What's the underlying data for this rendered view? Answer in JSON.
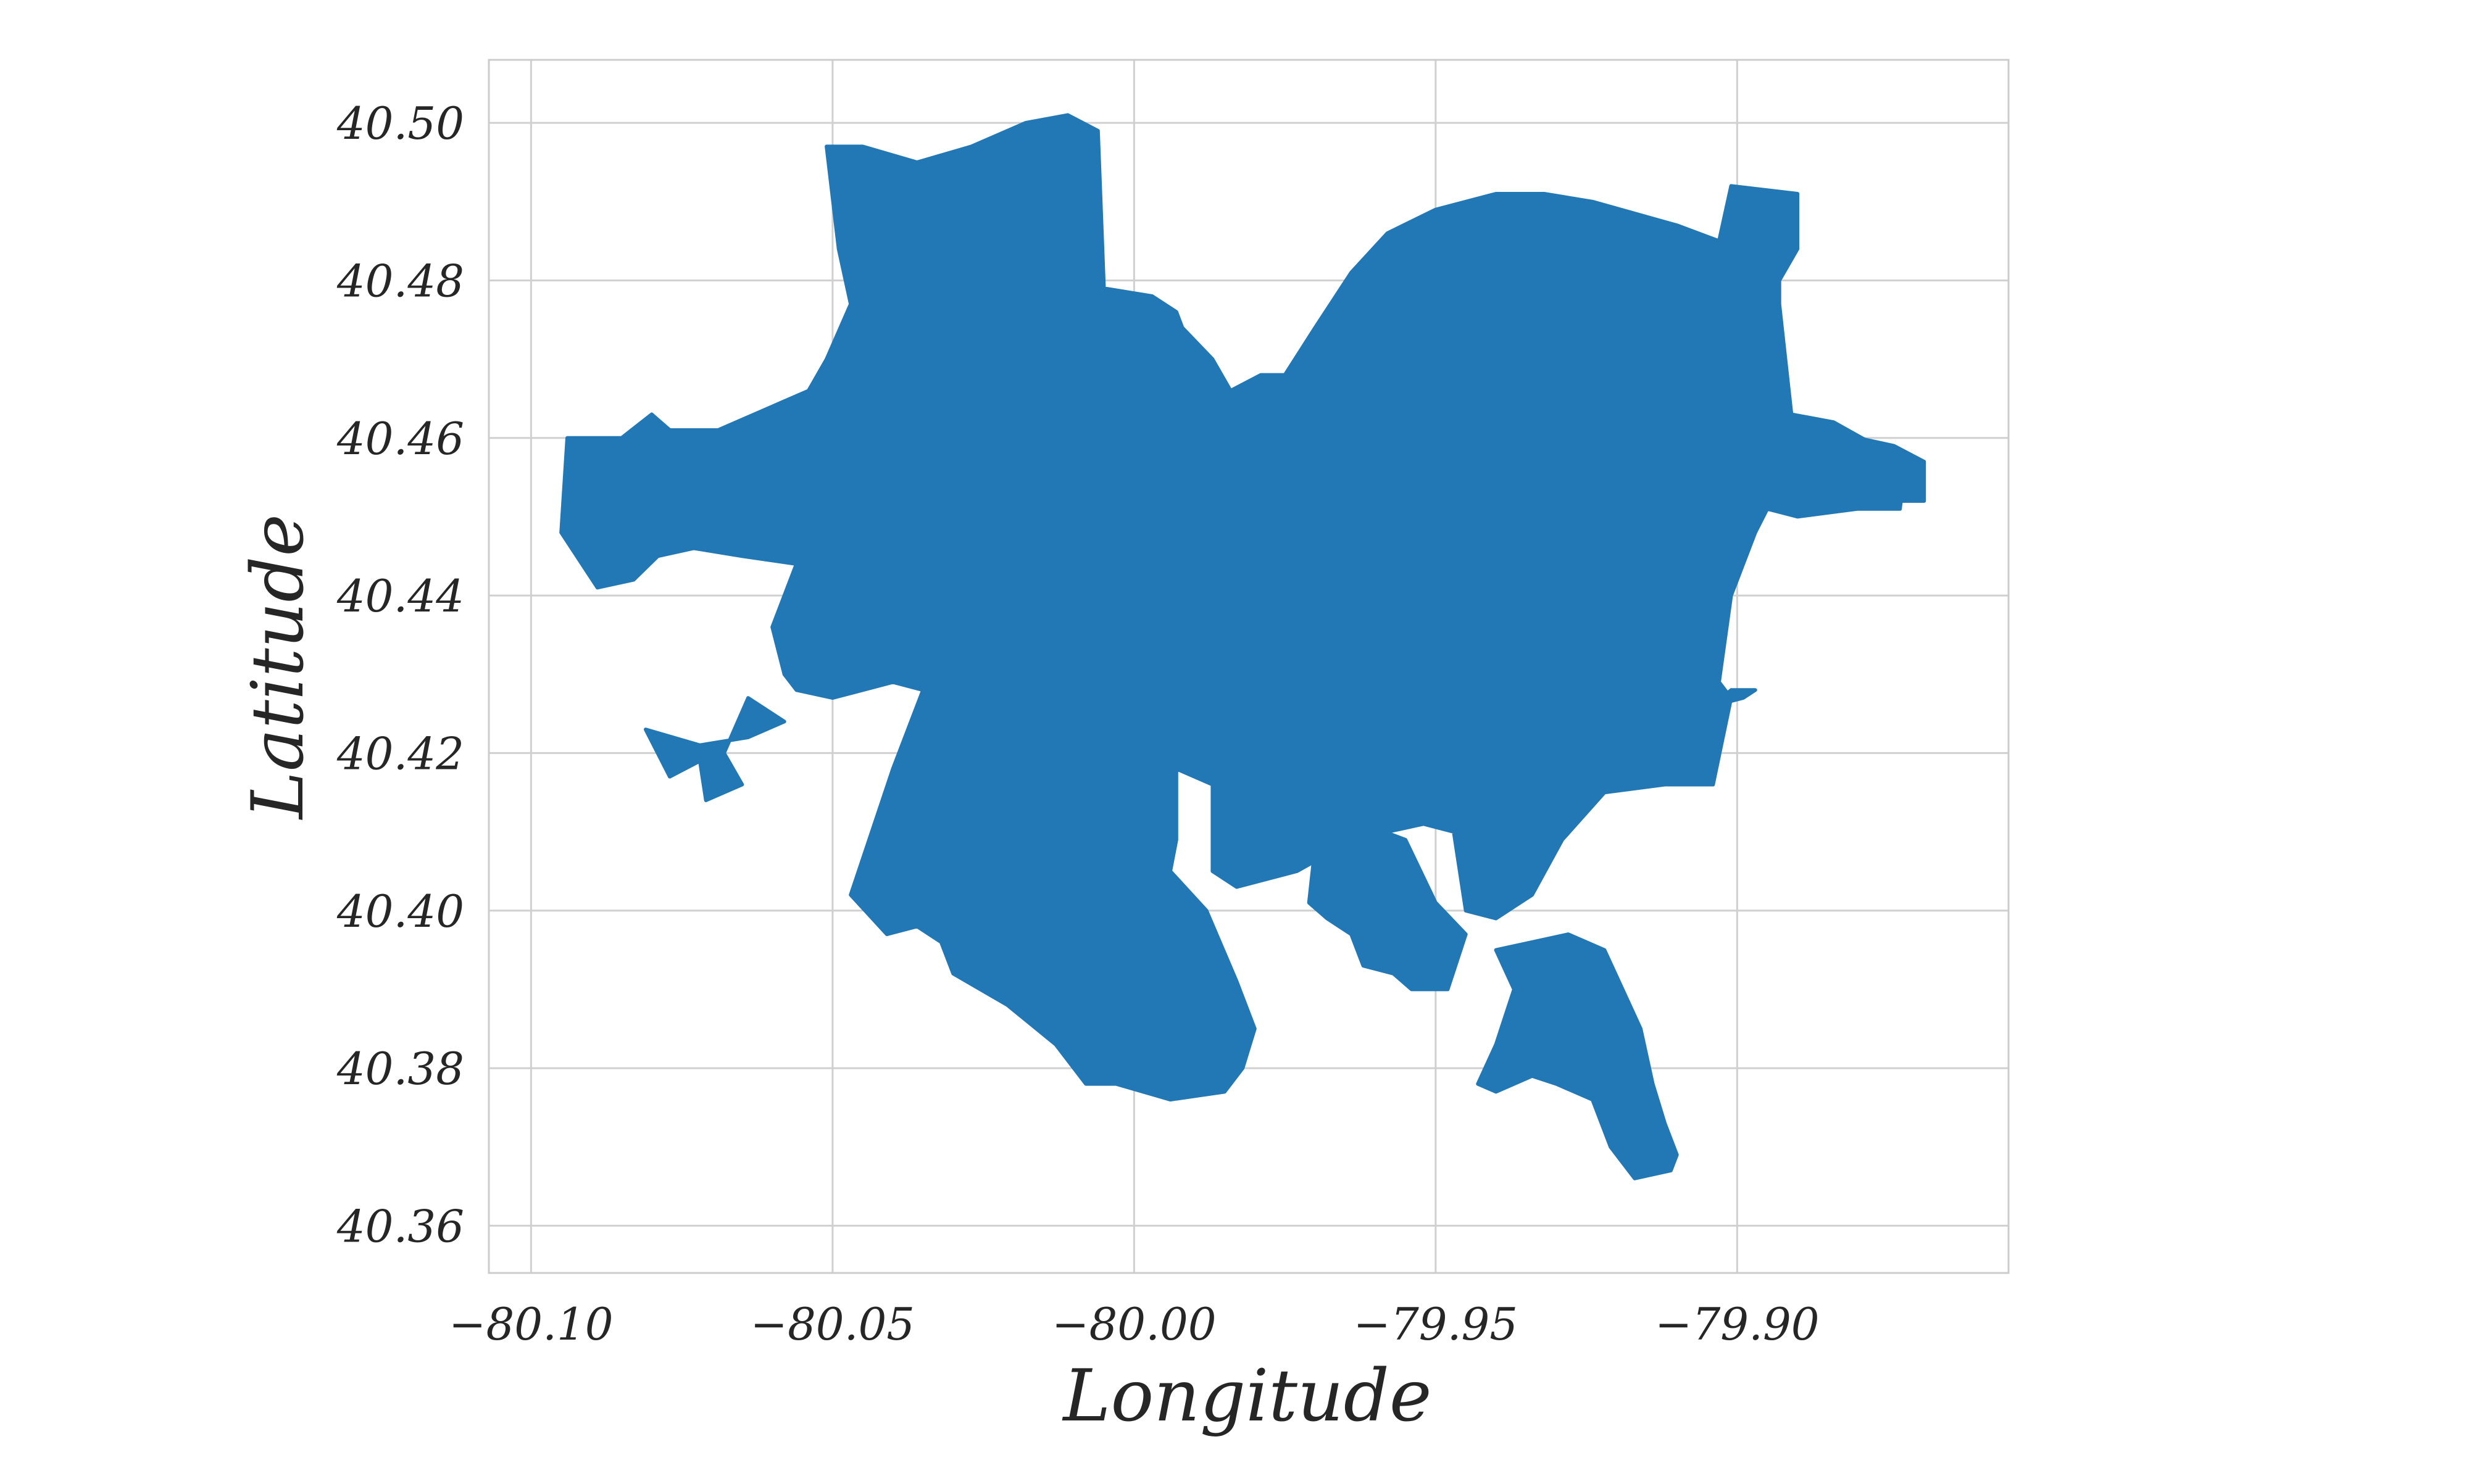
{
  "chart_data": {
    "type": "map",
    "xlabel": "Longitude",
    "ylabel": "Latitude",
    "xlim": [
      -80.107,
      -79.855
    ],
    "ylim": [
      40.354,
      40.508
    ],
    "xticks": [
      -80.1,
      -80.05,
      -80.0,
      -79.95,
      -79.9
    ],
    "xtick_labels": [
      "−80.10",
      "−80.05",
      "−80.00",
      "−79.95",
      "−79.90"
    ],
    "yticks": [
      40.36,
      40.38,
      40.4,
      40.42,
      40.44,
      40.46,
      40.48,
      40.5
    ],
    "ytick_labels": [
      "40.36",
      "40.38",
      "40.40",
      "40.42",
      "40.44",
      "40.46",
      "40.48",
      "40.50"
    ],
    "grid": true,
    "fill_color": "#2178b4",
    "grid_color": "#d0d0d0",
    "frame_color": "#cccccc",
    "region": [
      [
        -80.051,
        40.497
      ],
      [
        -80.045,
        40.497
      ],
      [
        -80.036,
        40.495
      ],
      [
        -80.027,
        40.497
      ],
      [
        -80.018,
        40.5
      ],
      [
        -80.011,
        40.501
      ],
      [
        -80.006,
        40.499
      ],
      [
        -80.005,
        40.479
      ],
      [
        -79.997,
        40.478
      ],
      [
        -79.993,
        40.476
      ],
      [
        -79.992,
        40.474
      ],
      [
        -79.987,
        40.47
      ],
      [
        -79.984,
        40.466
      ],
      [
        -79.979,
        40.468
      ],
      [
        -79.975,
        40.468
      ],
      [
        -79.97,
        40.474
      ],
      [
        -79.964,
        40.481
      ],
      [
        -79.958,
        40.486
      ],
      [
        -79.95,
        40.489
      ],
      [
        -79.94,
        40.491
      ],
      [
        -79.932,
        40.491
      ],
      [
        -79.924,
        40.49
      ],
      [
        -79.91,
        40.487
      ],
      [
        -79.903,
        40.485
      ],
      [
        -79.901,
        40.492
      ],
      [
        -79.89,
        40.491
      ],
      [
        -79.89,
        40.484
      ],
      [
        -79.893,
        40.48
      ],
      [
        -79.893,
        40.477
      ],
      [
        -79.891,
        40.463
      ],
      [
        -79.884,
        40.462
      ],
      [
        -79.877,
        40.459
      ],
      [
        -79.872,
        40.457
      ],
      [
        -79.873,
        40.451
      ],
      [
        -79.88,
        40.451
      ],
      [
        -79.89,
        40.45
      ],
      [
        -79.895,
        40.451
      ],
      [
        -79.897,
        40.448
      ],
      [
        -79.901,
        40.44
      ],
      [
        -79.903,
        40.429
      ],
      [
        -79.901,
        40.427
      ],
      [
        -79.904,
        40.416
      ],
      [
        -79.912,
        40.416
      ],
      [
        -79.922,
        40.415
      ],
      [
        -79.929,
        40.409
      ],
      [
        -79.934,
        40.402
      ],
      [
        -79.94,
        40.399
      ],
      [
        -79.945,
        40.4
      ],
      [
        -79.947,
        40.41
      ],
      [
        -79.952,
        40.411
      ],
      [
        -79.958,
        40.41
      ],
      [
        -79.966,
        40.408
      ],
      [
        -79.973,
        40.405
      ],
      [
        -79.983,
        40.403
      ],
      [
        -79.987,
        40.405
      ],
      [
        -79.987,
        40.416
      ],
      [
        -79.993,
        40.418
      ],
      [
        -79.993,
        40.409
      ],
      [
        -79.994,
        40.405
      ],
      [
        -79.988,
        40.4
      ],
      [
        -79.983,
        40.391
      ],
      [
        -79.98,
        40.385
      ],
      [
        -79.982,
        40.38
      ],
      [
        -79.985,
        40.377
      ],
      [
        -79.994,
        40.376
      ],
      [
        -80.003,
        40.378
      ],
      [
        -80.008,
        40.378
      ],
      [
        -80.013,
        40.383
      ],
      [
        -80.021,
        40.388
      ],
      [
        -80.03,
        40.392
      ],
      [
        -80.032,
        40.396
      ],
      [
        -80.036,
        40.398
      ],
      [
        -80.041,
        40.397
      ],
      [
        -80.047,
        40.402
      ],
      [
        -80.04,
        40.418
      ],
      [
        -80.035,
        40.428
      ],
      [
        -80.04,
        40.429
      ],
      [
        -80.05,
        40.427
      ],
      [
        -80.056,
        40.428
      ],
      [
        -80.058,
        40.43
      ],
      [
        -80.06,
        40.436
      ],
      [
        -80.056,
        40.444
      ],
      [
        -80.065,
        40.445
      ],
      [
        -80.073,
        40.446
      ],
      [
        -80.079,
        40.445
      ],
      [
        -80.083,
        40.442
      ],
      [
        -80.089,
        40.441
      ],
      [
        -80.095,
        40.448
      ],
      [
        -80.094,
        40.46
      ],
      [
        -80.085,
        40.46
      ],
      [
        -80.08,
        40.463
      ],
      [
        -80.077,
        40.461
      ],
      [
        -80.069,
        40.461
      ],
      [
        -80.06,
        40.464
      ],
      [
        -80.054,
        40.466
      ],
      [
        -80.051,
        40.47
      ],
      [
        -80.047,
        40.477
      ],
      [
        -80.049,
        40.484
      ]
    ],
    "islands": [
      [
        [
          -79.97,
          40.408
        ],
        [
          -79.962,
          40.411
        ],
        [
          -79.955,
          40.409
        ],
        [
          -79.95,
          40.401
        ],
        [
          -79.945,
          40.397
        ],
        [
          -79.948,
          40.39
        ],
        [
          -79.954,
          40.39
        ],
        [
          -79.957,
          40.392
        ],
        [
          -79.962,
          40.393
        ],
        [
          -79.964,
          40.397
        ],
        [
          -79.968,
          40.399
        ],
        [
          -79.971,
          40.401
        ]
      ],
      [
        [
          -79.94,
          40.395
        ],
        [
          -79.928,
          40.397
        ],
        [
          -79.922,
          40.395
        ],
        [
          -79.919,
          40.39
        ],
        [
          -79.916,
          40.385
        ],
        [
          -79.914,
          40.378
        ],
        [
          -79.912,
          40.373
        ],
        [
          -79.91,
          40.369
        ],
        [
          -79.911,
          40.367
        ],
        [
          -79.917,
          40.366
        ],
        [
          -79.921,
          40.37
        ],
        [
          -79.924,
          40.376
        ],
        [
          -79.93,
          40.378
        ],
        [
          -79.934,
          40.379
        ],
        [
          -79.94,
          40.377
        ],
        [
          -79.943,
          40.378
        ],
        [
          -79.94,
          40.383
        ],
        [
          -79.937,
          40.39
        ]
      ],
      [
        [
          -80.064,
          40.427
        ],
        [
          -80.058,
          40.424
        ],
        [
          -80.064,
          40.422
        ],
        [
          -80.072,
          40.421
        ],
        [
          -80.081,
          40.423
        ],
        [
          -80.077,
          40.417
        ],
        [
          -80.072,
          40.419
        ],
        [
          -80.071,
          40.414
        ],
        [
          -80.065,
          40.416
        ],
        [
          -80.068,
          40.42
        ]
      ],
      [
        [
          -79.888,
          40.462
        ],
        [
          -79.88,
          40.46
        ],
        [
          -79.874,
          40.459
        ],
        [
          -79.869,
          40.457
        ],
        [
          -79.869,
          40.452
        ],
        [
          -79.873,
          40.452
        ],
        [
          -79.88,
          40.451
        ],
        [
          -79.886,
          40.452
        ]
      ],
      [
        [
          -79.904,
          40.426
        ],
        [
          -79.899,
          40.427
        ],
        [
          -79.897,
          40.428
        ],
        [
          -79.901,
          40.428
        ]
      ]
    ]
  }
}
